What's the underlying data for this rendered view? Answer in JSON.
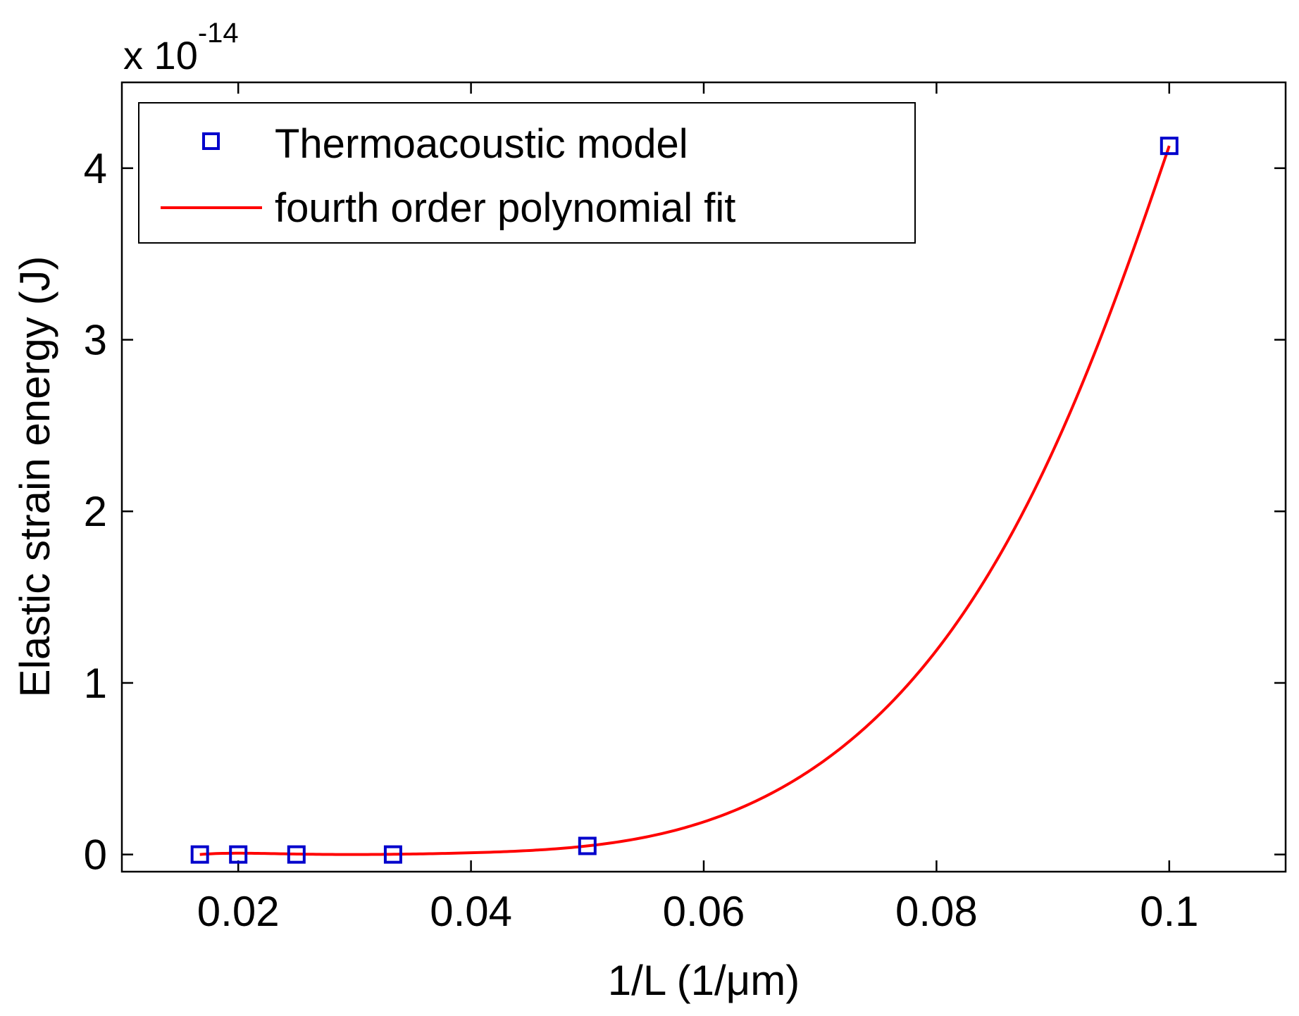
{
  "chart_data": {
    "type": "scatter",
    "title": "",
    "xlabel": "1/L (1/μm)",
    "ylabel": "Elastic strain energy (J)",
    "y_multiplier_base": "x 10",
    "y_multiplier_exponent": "-14",
    "xlim": [
      0.01,
      0.11
    ],
    "ylim": [
      -0.1,
      4.5
    ],
    "x_ticks": [
      0.02,
      0.04,
      0.06,
      0.08,
      0.1
    ],
    "x_tick_labels": [
      "0.02",
      "0.04",
      "0.06",
      "0.08",
      "0.1"
    ],
    "y_ticks": [
      0,
      1,
      2,
      3,
      4
    ],
    "y_tick_labels": [
      "0",
      "1",
      "2",
      "3",
      "4"
    ],
    "grid": false,
    "legend_position": "top-left",
    "series": [
      {
        "name": "Thermoacoustic model",
        "kind": "markers",
        "marker": "square",
        "color": "#0000cc",
        "x": [
          0.0167,
          0.02,
          0.025,
          0.0333,
          0.05,
          0.1
        ],
        "y": [
          0.0,
          0.0,
          0.0,
          0.0,
          0.05,
          4.13
        ]
      },
      {
        "name": "fourth order polynomial fit",
        "kind": "line",
        "color": "#ff0000",
        "fit": "fourth order polynomial",
        "x_range": [
          0.0167,
          0.1
        ],
        "sample_points": [
          [
            0.0167,
            0.0
          ],
          [
            0.03,
            0.0
          ],
          [
            0.04,
            0.01
          ],
          [
            0.05,
            0.05
          ],
          [
            0.06,
            0.19
          ],
          [
            0.07,
            0.53
          ],
          [
            0.08,
            1.19
          ],
          [
            0.09,
            2.35
          ],
          [
            0.1,
            4.13
          ]
        ]
      }
    ]
  }
}
